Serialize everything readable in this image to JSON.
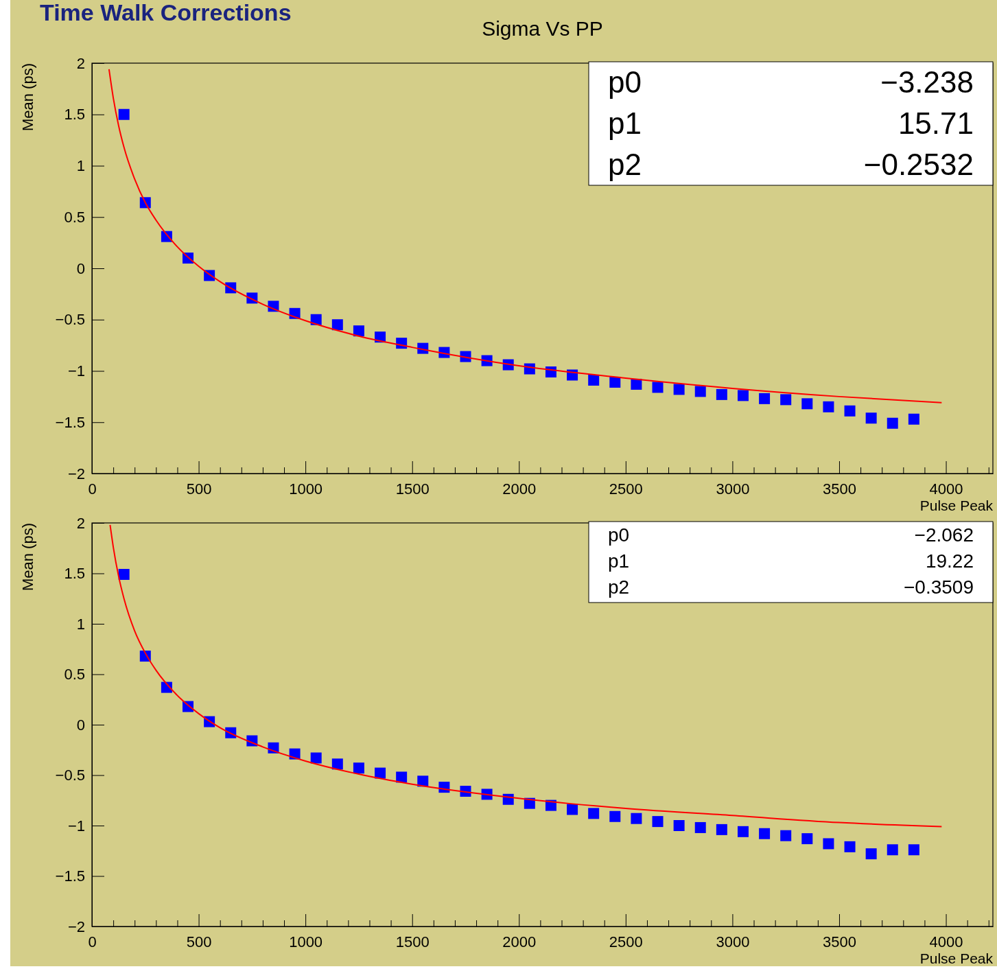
{
  "chart_data": [
    {
      "type": "scatter",
      "title": "Sigma Vs PP",
      "xlabel": "Pulse Peak",
      "ylabel": "Mean (ps)",
      "grid": false,
      "annotations": [
        "Time Walk Corrections",
        "p0",
        "−3.238",
        "p1",
        "15.71",
        "p2",
        "−0.2532"
      ],
      "yticks": [
        -2,
        -1.5,
        -1,
        -0.5,
        0,
        0.5,
        1,
        1.5,
        2
      ],
      "xlim": [
        0,
        4220
      ],
      "ylim": [
        -2,
        2
      ],
      "xticks": [
        0,
        {
          "value": 100,
          "label": null
        },
        {
          "value": 200,
          "label": null
        },
        {
          "value": 300,
          "label": null
        },
        {
          "value": 400,
          "label": null
        },
        500,
        {
          "value": 600,
          "label": null
        },
        {
          "value": 700,
          "label": null
        },
        {
          "value": 800,
          "label": null
        },
        {
          "value": 900,
          "label": null
        },
        1000,
        {
          "value": 1100,
          "label": null
        },
        {
          "value": 1200,
          "label": null
        },
        {
          "value": 1300,
          "label": null
        },
        {
          "value": 1400,
          "label": null
        },
        1500,
        {
          "value": 1600,
          "label": null
        },
        {
          "value": 1700,
          "label": null
        },
        {
          "value": 1800,
          "label": null
        },
        {
          "value": 1900,
          "label": null
        },
        2000,
        {
          "value": 2100,
          "label": null
        },
        {
          "value": 2200,
          "label": null
        },
        {
          "value": 2300,
          "label": null
        },
        {
          "value": 2400,
          "label": null
        },
        2500,
        {
          "value": 2600,
          "label": null
        },
        {
          "value": 2700,
          "label": null
        },
        {
          "value": 2800,
          "label": null
        },
        {
          "value": 2900,
          "label": null
        },
        3000,
        {
          "value": 3100,
          "label": null
        },
        {
          "value": 3200,
          "label": null
        },
        {
          "value": 3300,
          "label": null
        },
        {
          "value": 3400,
          "label": null
        },
        3500,
        {
          "value": 3600,
          "label": null
        },
        {
          "value": 3700,
          "label": null
        },
        {
          "value": 3800,
          "label": null
        },
        {
          "value": 3900,
          "label": null
        },
        4000,
        {
          "value": 4100,
          "label": null
        },
        {
          "value": 4200,
          "label": null
        }
      ],
      "series": [
        {
          "marker": "square",
          "color": "#0000ff",
          "x": [
            150,
            250,
            350,
            450,
            550,
            650,
            750,
            850,
            950,
            1050,
            1150,
            1250,
            1350,
            1450,
            1550,
            1650,
            1750,
            1850,
            1950,
            2050,
            2150,
            2250,
            2350,
            2450,
            2550,
            2650,
            2750,
            2850,
            2950,
            3050,
            3150,
            3250,
            3350,
            3450,
            3550,
            3650,
            3750,
            3850
          ],
          "values": [
            1.5,
            0.64,
            0.31,
            0.1,
            -0.07,
            -0.19,
            -0.29,
            -0.37,
            -0.44,
            -0.5,
            -0.55,
            -0.61,
            -0.67,
            -0.73,
            -0.78,
            -0.82,
            -0.86,
            -0.9,
            -0.94,
            -0.98,
            -1.01,
            -1.04,
            -1.09,
            -1.11,
            -1.13,
            -1.16,
            -1.18,
            -1.2,
            -1.23,
            -1.24,
            -1.27,
            -1.28,
            -1.32,
            -1.35,
            -1.39,
            -1.46,
            -1.51,
            -1.47
          ]
        },
        {
          "type": "line",
          "color": "#ff0000",
          "x": [
            80,
            100,
            125,
            150,
            200,
            250,
            300,
            400,
            500,
            600,
            800,
            1000,
            1250,
            1500,
            2000,
            2500,
            3000,
            3500,
            3980
          ],
          "values": [
            1.94,
            1.66,
            1.39,
            1.18,
            0.87,
            0.64,
            0.47,
            0.21,
            0.02,
            -0.13,
            -0.35,
            -0.51,
            -0.66,
            -0.77,
            -0.95,
            -1.07,
            -1.17,
            -1.25,
            -1.31
          ]
        }
      ]
    },
    {
      "type": "scatter",
      "xlabel": "Pulse Peak",
      "ylabel": "Mean (ps)",
      "grid": false,
      "annotations": [
        "p0",
        "−2.062",
        "p1",
        "19.22",
        "p2",
        "−0.3509"
      ],
      "yticks": [
        -2,
        -1.5,
        -1,
        -0.5,
        0,
        0.5,
        1,
        1.5,
        2
      ],
      "xlim": [
        0,
        4220
      ],
      "ylim": [
        -2,
        2
      ],
      "xticks": [
        0,
        {
          "value": 100,
          "label": null
        },
        {
          "value": 200,
          "label": null
        },
        {
          "value": 300,
          "label": null
        },
        {
          "value": 400,
          "label": null
        },
        500,
        {
          "value": 600,
          "label": null
        },
        {
          "value": 700,
          "label": null
        },
        {
          "value": 800,
          "label": null
        },
        {
          "value": 900,
          "label": null
        },
        1000,
        {
          "value": 1100,
          "label": null
        },
        {
          "value": 1200,
          "label": null
        },
        {
          "value": 1300,
          "label": null
        },
        {
          "value": 1400,
          "label": null
        },
        1500,
        {
          "value": 1600,
          "label": null
        },
        {
          "value": 1700,
          "label": null
        },
        {
          "value": 1800,
          "label": null
        },
        {
          "value": 1900,
          "label": null
        },
        2000,
        {
          "value": 2100,
          "label": null
        },
        {
          "value": 2200,
          "label": null
        },
        {
          "value": 2300,
          "label": null
        },
        {
          "value": 2400,
          "label": null
        },
        2500,
        {
          "value": 2600,
          "label": null
        },
        {
          "value": 2700,
          "label": null
        },
        {
          "value": 2800,
          "label": null
        },
        {
          "value": 2900,
          "label": null
        },
        3000,
        {
          "value": 3100,
          "label": null
        },
        {
          "value": 3200,
          "label": null
        },
        {
          "value": 3300,
          "label": null
        },
        {
          "value": 3400,
          "label": null
        },
        3500,
        {
          "value": 3600,
          "label": null
        },
        {
          "value": 3700,
          "label": null
        },
        {
          "value": 3800,
          "label": null
        },
        {
          "value": 3900,
          "label": null
        },
        4000,
        {
          "value": 4100,
          "label": null
        },
        {
          "value": 4200,
          "label": null
        }
      ],
      "series": [
        {
          "marker": "square",
          "color": "#0000ff",
          "x": [
            150,
            250,
            350,
            450,
            550,
            650,
            750,
            850,
            950,
            1050,
            1150,
            1250,
            1350,
            1450,
            1550,
            1650,
            1750,
            1850,
            1950,
            2050,
            2150,
            2250,
            2350,
            2450,
            2550,
            2650,
            2750,
            2850,
            2950,
            3050,
            3150,
            3250,
            3350,
            3450,
            3550,
            3650,
            3750,
            3850
          ],
          "values": [
            1.49,
            0.68,
            0.37,
            0.18,
            0.03,
            -0.08,
            -0.16,
            -0.23,
            -0.29,
            -0.33,
            -0.39,
            -0.43,
            -0.48,
            -0.52,
            -0.56,
            -0.62,
            -0.66,
            -0.69,
            -0.74,
            -0.78,
            -0.8,
            -0.84,
            -0.88,
            -0.91,
            -0.93,
            -0.96,
            -1.0,
            -1.02,
            -1.04,
            -1.06,
            -1.08,
            -1.1,
            -1.13,
            -1.18,
            -1.21,
            -1.28,
            -1.24,
            -1.24
          ]
        },
        {
          "type": "line",
          "color": "#ff0000",
          "x": [
            85,
            100,
            125,
            150,
            200,
            250,
            300,
            400,
            500,
            600,
            800,
            1000,
            1250,
            1500,
            2000,
            2500,
            3000,
            3500,
            3980
          ],
          "values": [
            1.98,
            1.76,
            1.47,
            1.25,
            0.93,
            0.71,
            0.54,
            0.29,
            0.11,
            -0.03,
            -0.22,
            -0.36,
            -0.49,
            -0.59,
            -0.73,
            -0.83,
            -0.9,
            -0.97,
            -1.01
          ]
        }
      ]
    }
  ]
}
